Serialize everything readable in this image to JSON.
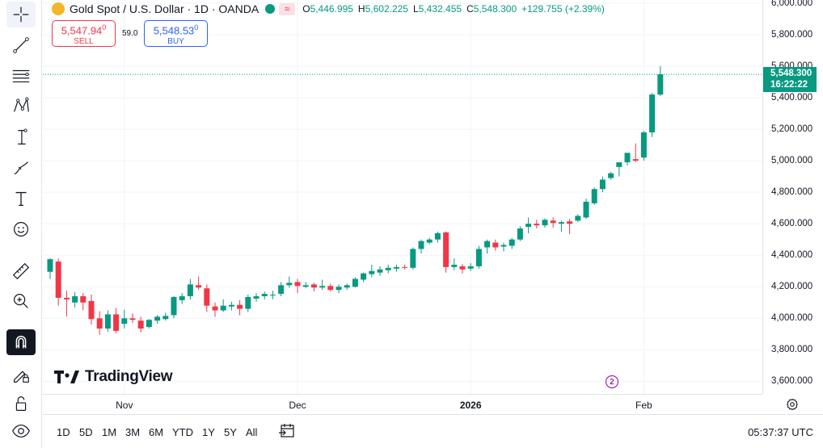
{
  "legend": {
    "title": "Gold Spot / U.S. Dollar · 1D · OANDA",
    "o_key": "O",
    "o_val": "5,446.995",
    "h_key": "H",
    "h_val": "5,602.225",
    "l_key": "L",
    "l_val": "5,432.455",
    "c_key": "C",
    "c_val": "5,548.300",
    "change": "+129.755 (+2.39%)",
    "badge": "≈"
  },
  "trade": {
    "sell_main": "5,547.94",
    "sell_sup": "0",
    "sell_label": "SELL",
    "spread": "59.0",
    "buy_main": "5,548.53",
    "buy_sup": "0",
    "buy_label": "BUY"
  },
  "price_axis": {
    "labels": [
      "6,000.000",
      "5,800.000",
      "5,600.000",
      "5,400.000",
      "5,200.000",
      "5,000.000",
      "4,800.000",
      "4,600.000",
      "4,400.000",
      "4,200.000",
      "4,000.000",
      "3,800.000",
      "3,600.000"
    ],
    "last_price": "5,548.300",
    "countdown": "16:22:22"
  },
  "time_axis": {
    "labels": [
      {
        "text": "Nov",
        "bold": false
      },
      {
        "text": "Dec",
        "bold": false
      },
      {
        "text": "2026",
        "bold": true
      },
      {
        "text": "Feb",
        "bold": false
      }
    ]
  },
  "ranges": [
    "1D",
    "5D",
    "1M",
    "3M",
    "6M",
    "YTD",
    "1Y",
    "5Y",
    "All"
  ],
  "clock": "05:37:37 UTC",
  "watermark": "TradingView",
  "colors": {
    "up": "#089981",
    "down": "#f23645",
    "grid": "#f0f3fa",
    "axis_text": "#131722",
    "last_price_line": "#089981"
  },
  "toolbar_icons": [
    "crosshair-icon",
    "trend-line-icon",
    "fib-retracement-icon",
    "pattern-icon",
    "measure-projection-icon",
    "brush-icon",
    "text-icon",
    "emoji-icon",
    "ruler-icon",
    "zoom-in-icon",
    "magnet-icon",
    "lock-drawing-icon",
    "lock-icon",
    "eye-icon"
  ],
  "chart_data": {
    "type": "candlestick",
    "timeframe": "1D",
    "ylim": [
      3520,
      6020
    ],
    "y_ticks": [
      3600,
      3800,
      4000,
      4200,
      4400,
      4600,
      4800,
      5000,
      5200,
      5400,
      5600,
      5800,
      6000
    ],
    "x_ticks": [
      {
        "label": "Nov",
        "index": 9
      },
      {
        "label": "Dec",
        "index": 30
      },
      {
        "label": "2026",
        "index": 51
      },
      {
        "label": "Feb",
        "index": 72
      }
    ],
    "last_price": 5548.3,
    "candles": [
      {
        "o": 4295,
        "h": 4382,
        "l": 4250,
        "c": 4375
      },
      {
        "o": 4360,
        "h": 4380,
        "l": 4080,
        "c": 4130
      },
      {
        "o": 4130,
        "h": 4175,
        "l": 4010,
        "c": 4120
      },
      {
        "o": 4100,
        "h": 4165,
        "l": 4070,
        "c": 4140
      },
      {
        "o": 4140,
        "h": 4160,
        "l": 4050,
        "c": 4100
      },
      {
        "o": 4110,
        "h": 4150,
        "l": 3960,
        "c": 3995
      },
      {
        "o": 4000,
        "h": 4045,
        "l": 3895,
        "c": 3935
      },
      {
        "o": 3935,
        "h": 4050,
        "l": 3915,
        "c": 4025
      },
      {
        "o": 4025,
        "h": 4065,
        "l": 3905,
        "c": 3920
      },
      {
        "o": 3965,
        "h": 4055,
        "l": 3935,
        "c": 4000
      },
      {
        "o": 4000,
        "h": 4030,
        "l": 3970,
        "c": 3990
      },
      {
        "o": 3985,
        "h": 4010,
        "l": 3910,
        "c": 3935
      },
      {
        "o": 3945,
        "h": 3995,
        "l": 3935,
        "c": 3990
      },
      {
        "o": 3985,
        "h": 4020,
        "l": 3965,
        "c": 4010
      },
      {
        "o": 3995,
        "h": 4035,
        "l": 3985,
        "c": 4015
      },
      {
        "o": 4020,
        "h": 4140,
        "l": 4000,
        "c": 4135
      },
      {
        "o": 4115,
        "h": 4160,
        "l": 4090,
        "c": 4140
      },
      {
        "o": 4140,
        "h": 4250,
        "l": 4120,
        "c": 4215
      },
      {
        "o": 4210,
        "h": 4265,
        "l": 4180,
        "c": 4195
      },
      {
        "o": 4190,
        "h": 4215,
        "l": 4040,
        "c": 4080
      },
      {
        "o": 4075,
        "h": 4100,
        "l": 4010,
        "c": 4050
      },
      {
        "o": 4050,
        "h": 4120,
        "l": 4040,
        "c": 4080
      },
      {
        "o": 4075,
        "h": 4105,
        "l": 4050,
        "c": 4085
      },
      {
        "o": 4085,
        "h": 4115,
        "l": 4020,
        "c": 4060
      },
      {
        "o": 4060,
        "h": 4150,
        "l": 4040,
        "c": 4135
      },
      {
        "o": 4125,
        "h": 4160,
        "l": 4105,
        "c": 4140
      },
      {
        "o": 4140,
        "h": 4170,
        "l": 4120,
        "c": 4155
      },
      {
        "o": 4150,
        "h": 4175,
        "l": 4120,
        "c": 4150
      },
      {
        "o": 4155,
        "h": 4230,
        "l": 4140,
        "c": 4210
      },
      {
        "o": 4210,
        "h": 4265,
        "l": 4195,
        "c": 4225
      },
      {
        "o": 4230,
        "h": 4250,
        "l": 4160,
        "c": 4205
      },
      {
        "o": 4200,
        "h": 4230,
        "l": 4190,
        "c": 4210
      },
      {
        "o": 4215,
        "h": 4225,
        "l": 4170,
        "c": 4195
      },
      {
        "o": 4195,
        "h": 4245,
        "l": 4180,
        "c": 4205
      },
      {
        "o": 4205,
        "h": 4220,
        "l": 4170,
        "c": 4180
      },
      {
        "o": 4180,
        "h": 4215,
        "l": 4160,
        "c": 4200
      },
      {
        "o": 4195,
        "h": 4220,
        "l": 4180,
        "c": 4210
      },
      {
        "o": 4200,
        "h": 4260,
        "l": 4195,
        "c": 4250
      },
      {
        "o": 4245,
        "h": 4290,
        "l": 4230,
        "c": 4285
      },
      {
        "o": 4280,
        "h": 4340,
        "l": 4260,
        "c": 4300
      },
      {
        "o": 4290,
        "h": 4330,
        "l": 4270,
        "c": 4310
      },
      {
        "o": 4305,
        "h": 4340,
        "l": 4285,
        "c": 4320
      },
      {
        "o": 4315,
        "h": 4340,
        "l": 4295,
        "c": 4325
      },
      {
        "o": 4325,
        "h": 4340,
        "l": 4310,
        "c": 4320
      },
      {
        "o": 4320,
        "h": 4450,
        "l": 4310,
        "c": 4440
      },
      {
        "o": 4440,
        "h": 4500,
        "l": 4410,
        "c": 4490
      },
      {
        "o": 4480,
        "h": 4510,
        "l": 4470,
        "c": 4500
      },
      {
        "o": 4500,
        "h": 4550,
        "l": 4480,
        "c": 4540
      },
      {
        "o": 4545,
        "h": 4550,
        "l": 4290,
        "c": 4325
      },
      {
        "o": 4325,
        "h": 4380,
        "l": 4305,
        "c": 4340
      },
      {
        "o": 4330,
        "h": 4345,
        "l": 4285,
        "c": 4310
      },
      {
        "o": 4315,
        "h": 4350,
        "l": 4300,
        "c": 4330
      },
      {
        "o": 4330,
        "h": 4460,
        "l": 4315,
        "c": 4440
      },
      {
        "o": 4450,
        "h": 4500,
        "l": 4410,
        "c": 4490
      },
      {
        "o": 4480,
        "h": 4500,
        "l": 4430,
        "c": 4450
      },
      {
        "o": 4455,
        "h": 4480,
        "l": 4425,
        "c": 4465
      },
      {
        "o": 4460,
        "h": 4510,
        "l": 4440,
        "c": 4500
      },
      {
        "o": 4500,
        "h": 4585,
        "l": 4490,
        "c": 4570
      },
      {
        "o": 4580,
        "h": 4640,
        "l": 4540,
        "c": 4600
      },
      {
        "o": 4600,
        "h": 4625,
        "l": 4570,
        "c": 4590
      },
      {
        "o": 4590,
        "h": 4635,
        "l": 4575,
        "c": 4625
      },
      {
        "o": 4620,
        "h": 4640,
        "l": 4575,
        "c": 4605
      },
      {
        "o": 4600,
        "h": 4620,
        "l": 4550,
        "c": 4610
      },
      {
        "o": 4615,
        "h": 4630,
        "l": 4535,
        "c": 4600
      },
      {
        "o": 4620,
        "h": 4660,
        "l": 4610,
        "c": 4650
      },
      {
        "o": 4640,
        "h": 4760,
        "l": 4630,
        "c": 4740
      },
      {
        "o": 4730,
        "h": 4830,
        "l": 4720,
        "c": 4820
      },
      {
        "o": 4820,
        "h": 4900,
        "l": 4800,
        "c": 4880
      },
      {
        "o": 4890,
        "h": 4930,
        "l": 4880,
        "c": 4920
      },
      {
        "o": 4960,
        "h": 4990,
        "l": 4900,
        "c": 4990
      },
      {
        "o": 4990,
        "h": 5040,
        "l": 4970,
        "c": 5050
      },
      {
        "o": 5010,
        "h": 5110,
        "l": 4990,
        "c": 5000
      },
      {
        "o": 5020,
        "h": 5190,
        "l": 5000,
        "c": 5180
      },
      {
        "o": 5180,
        "h": 5430,
        "l": 5150,
        "c": 5420
      },
      {
        "o": 5420,
        "h": 5600,
        "l": 5410,
        "c": 5548
      }
    ]
  }
}
